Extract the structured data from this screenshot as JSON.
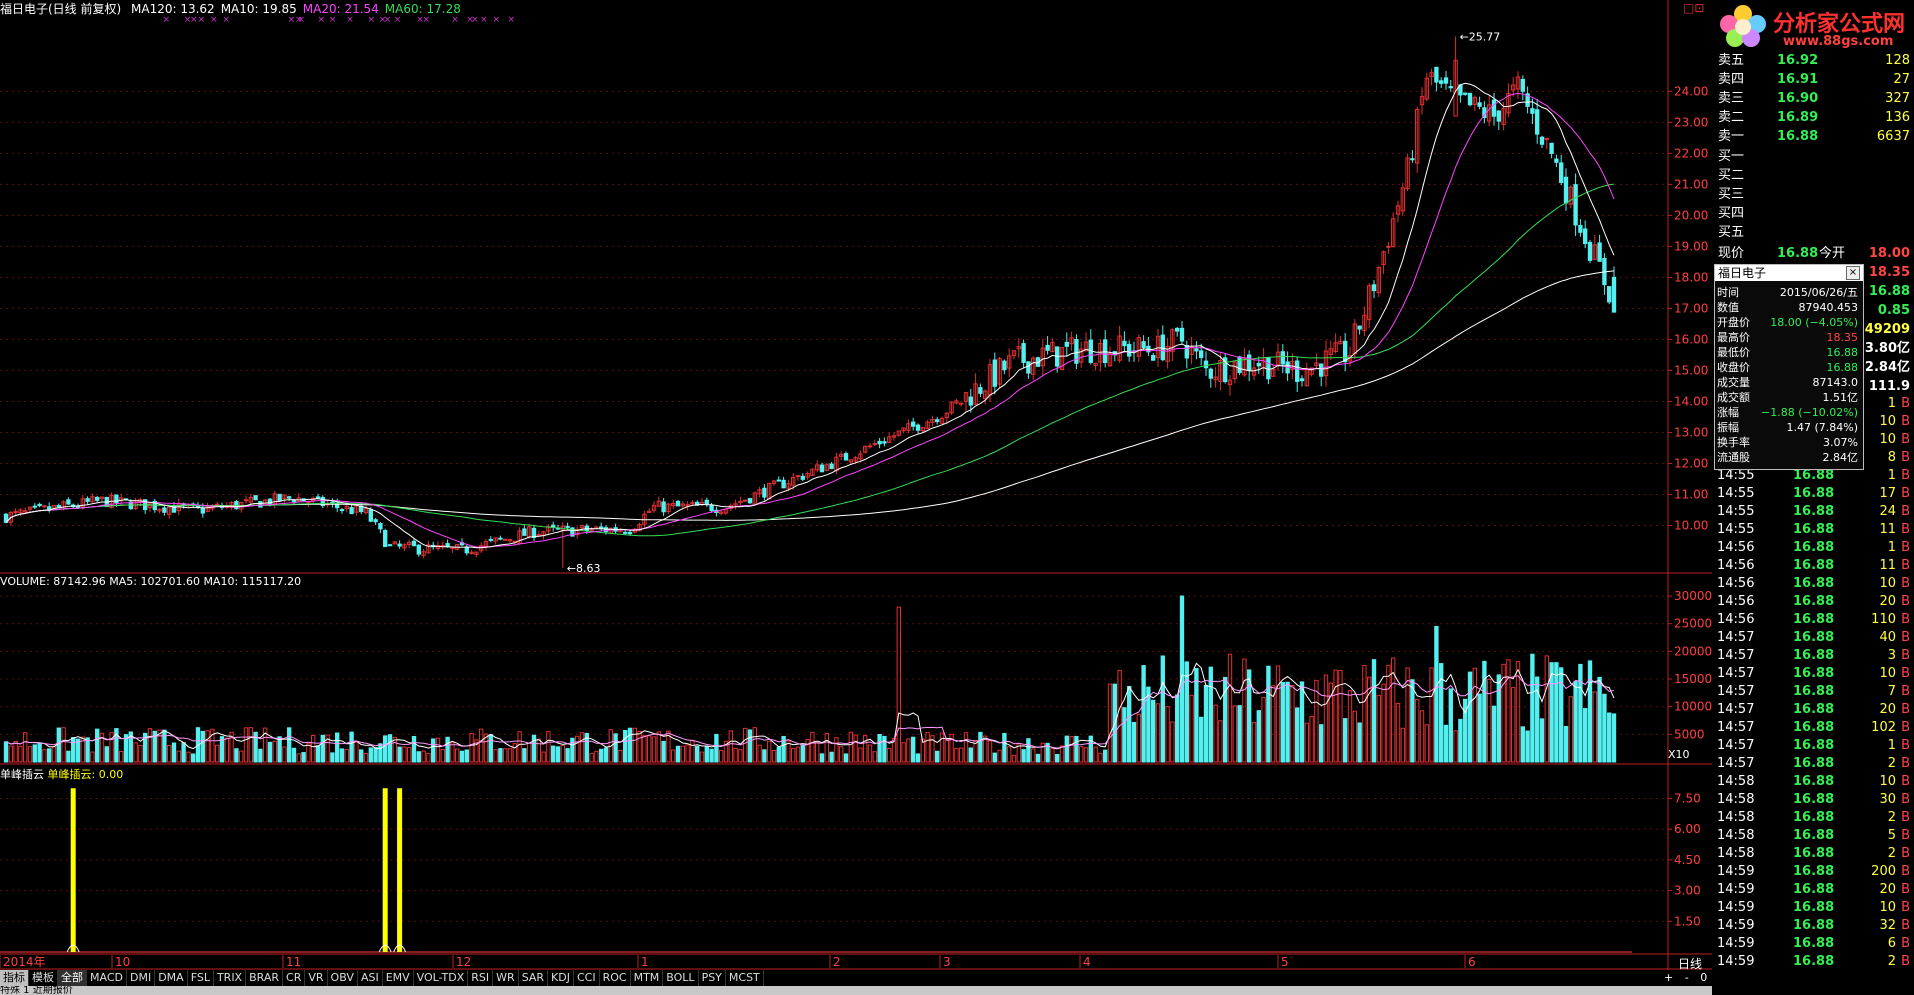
{
  "header": {
    "stock_title": "福日电子(日线 前复权)",
    "ma_items": [
      {
        "text": "MA120: 13.62",
        "color": "#ffffff"
      },
      {
        "text": "MA10: 19.85",
        "color": "#ffffff"
      },
      {
        "text": "MA20: 21.54",
        "color": "#ff44ff"
      },
      {
        "text": "MA60: 17.28",
        "color": "#33dd55"
      }
    ],
    "window_buttons": [
      "□",
      "⊡"
    ]
  },
  "price_chart": {
    "high_label": "25.77",
    "low_label": "8.63",
    "low_label_prefix": "←",
    "high_label_prefix": "←",
    "y_ticks": [
      "24.00",
      "23.00",
      "22.00",
      "21.00",
      "20.00",
      "19.00",
      "18.00",
      "17.00",
      "16.00",
      "15.00",
      "14.00",
      "13.00",
      "12.00",
      "11.00",
      "10.00"
    ],
    "ylim": [
      8.5,
      26.3
    ],
    "candles_count": 230,
    "closes_keypoints": [
      [
        0,
        10.3
      ],
      [
        20,
        10.8
      ],
      [
        40,
        10.5
      ],
      [
        60,
        10.9
      ],
      [
        75,
        10.4
      ],
      [
        80,
        9.3
      ],
      [
        95,
        9.2
      ],
      [
        110,
        9.8
      ],
      [
        130,
        9.9
      ],
      [
        135,
        10.6
      ],
      [
        150,
        10.6
      ],
      [
        175,
        12.2
      ],
      [
        195,
        13.6
      ],
      [
        210,
        15.3
      ],
      [
        225,
        15.7
      ],
      [
        240,
        15.7
      ],
      [
        245,
        16.0
      ],
      [
        250,
        15.0
      ],
      [
        260,
        15.3
      ],
      [
        270,
        15.0
      ],
      [
        280,
        15.6
      ],
      [
        285,
        17.8
      ],
      [
        292,
        21.4
      ],
      [
        296,
        24.5
      ],
      [
        302,
        23.7
      ],
      [
        310,
        23.2
      ],
      [
        315,
        24.1
      ],
      [
        322,
        22.0
      ],
      [
        330,
        19.0
      ],
      [
        335,
        17.2
      ]
    ],
    "signal_marks_colour": "#cc33cc",
    "colors": {
      "up": "#e03030",
      "down": "#54f0f0",
      "ma10": "#ffffff",
      "ma20": "#ff44ff",
      "ma60": "#33dd55",
      "ma120": "#ffffff"
    }
  },
  "volume_chart": {
    "header": "VOLUME: 87142.96  MA5: 102701.60  MA10: 115117.20",
    "y_ticks": [
      "30000",
      "25000",
      "20000",
      "15000",
      "10000",
      "5000"
    ],
    "unit": "X10",
    "ylim": [
      0,
      32000
    ]
  },
  "indicator_chart": {
    "header_name": "单峰插云",
    "header_value": "单峰插云: 0.00",
    "y_ticks": [
      "7.50",
      "6.00",
      "4.50",
      "3.00",
      "1.50"
    ],
    "ylim": [
      0,
      8.5
    ],
    "signal_colour": "#ffff00"
  },
  "x_axis": {
    "labels": [
      "2014年",
      "10",
      "11",
      "12",
      "1",
      "2",
      "3",
      "4",
      "5",
      "6"
    ],
    "period_label": "日线"
  },
  "tabs": [
    "指标",
    "模板",
    "全部",
    "MACD",
    "DMI",
    "DMA",
    "FSL",
    "TRIX",
    "BRAR",
    "CR",
    "VR",
    "OBV",
    "ASI",
    "EMV",
    "VOL-TDX",
    "RSI",
    "WR",
    "SAR",
    "KDJ",
    "CCI",
    "ROC",
    "MTM",
    "BOLL",
    "PSY",
    "MCST"
  ],
  "tab_controls": [
    "+",
    "-",
    "0"
  ],
  "footer_text": "特殊 1  近期报价",
  "logo": {
    "title": "分析家公式网",
    "url": "www.88gs.com"
  },
  "quote_panel": {
    "sell": [
      {
        "label": "卖五",
        "price": "16.92",
        "vol": "128"
      },
      {
        "label": "卖四",
        "price": "16.91",
        "vol": "27"
      },
      {
        "label": "卖三",
        "price": "16.90",
        "vol": "327"
      },
      {
        "label": "卖二",
        "price": "16.89",
        "vol": "136"
      },
      {
        "label": "卖一",
        "price": "16.88",
        "vol": "6637"
      }
    ],
    "buy": [
      {
        "label": "买一"
      },
      {
        "label": "买二"
      },
      {
        "label": "买三"
      },
      {
        "label": "买四"
      },
      {
        "label": "买五"
      }
    ],
    "current_label": "现价",
    "current_price": "16.88",
    "open_label": "今开",
    "right_values": [
      "18.00",
      "18.35",
      "16.88",
      "0.85",
      "49209",
      "3.80亿",
      "2.84亿",
      "111.9"
    ]
  },
  "popup": {
    "title": "福日电子",
    "close": "×",
    "rows": [
      {
        "label": "时间",
        "value": "2015/06/26/五"
      },
      {
        "label": "数值",
        "value": "87940.453"
      },
      {
        "label": "开盘价",
        "value": "18.00 (−4.05%)"
      },
      {
        "label": "最高价",
        "value": "18.35"
      },
      {
        "label": "最低价",
        "value": "16.88"
      },
      {
        "label": "收盘价",
        "value": "16.88"
      },
      {
        "label": "成交量",
        "value": "87143.0"
      },
      {
        "label": "成交额",
        "value": "1.51亿"
      },
      {
        "label": "涨幅",
        "value": "−1.88 (−10.02%)"
      },
      {
        "label": "振幅",
        "value": "1.47 (7.84%)"
      },
      {
        "label": "换手率",
        "value": "3.07%"
      },
      {
        "label": "流通股",
        "value": "2.84亿"
      }
    ]
  },
  "ticks": [
    {
      "t": "",
      "p": "",
      "v": "1",
      "d": "B"
    },
    {
      "t": "",
      "p": "",
      "v": "10",
      "d": "B"
    },
    {
      "t": "",
      "p": "",
      "v": "10",
      "d": "B"
    },
    {
      "t": "",
      "p": "",
      "v": "8",
      "d": "B"
    },
    {
      "t": "14:55",
      "p": "16.88",
      "v": "1",
      "d": "B"
    },
    {
      "t": "14:55",
      "p": "16.88",
      "v": "17",
      "d": "B"
    },
    {
      "t": "14:55",
      "p": "16.88",
      "v": "24",
      "d": "B"
    },
    {
      "t": "14:55",
      "p": "16.88",
      "v": "11",
      "d": "B"
    },
    {
      "t": "14:56",
      "p": "16.88",
      "v": "1",
      "d": "B"
    },
    {
      "t": "14:56",
      "p": "16.88",
      "v": "11",
      "d": "B"
    },
    {
      "t": "14:56",
      "p": "16.88",
      "v": "10",
      "d": "B"
    },
    {
      "t": "14:56",
      "p": "16.88",
      "v": "20",
      "d": "B"
    },
    {
      "t": "14:56",
      "p": "16.88",
      "v": "110",
      "d": "B"
    },
    {
      "t": "14:57",
      "p": "16.88",
      "v": "40",
      "d": "B"
    },
    {
      "t": "14:57",
      "p": "16.88",
      "v": "3",
      "d": "B"
    },
    {
      "t": "14:57",
      "p": "16.88",
      "v": "10",
      "d": "B"
    },
    {
      "t": "14:57",
      "p": "16.88",
      "v": "7",
      "d": "B"
    },
    {
      "t": "14:57",
      "p": "16.88",
      "v": "20",
      "d": "B"
    },
    {
      "t": "14:57",
      "p": "16.88",
      "v": "102",
      "d": "B"
    },
    {
      "t": "14:57",
      "p": "16.88",
      "v": "1",
      "d": "B"
    },
    {
      "t": "14:57",
      "p": "16.88",
      "v": "2",
      "d": "B"
    },
    {
      "t": "14:58",
      "p": "16.88",
      "v": "10",
      "d": "B"
    },
    {
      "t": "14:58",
      "p": "16.88",
      "v": "30",
      "d": "B"
    },
    {
      "t": "14:58",
      "p": "16.88",
      "v": "2",
      "d": "B"
    },
    {
      "t": "14:58",
      "p": "16.88",
      "v": "5",
      "d": "B"
    },
    {
      "t": "14:58",
      "p": "16.88",
      "v": "2",
      "d": "B"
    },
    {
      "t": "14:59",
      "p": "16.88",
      "v": "200",
      "d": "B"
    },
    {
      "t": "14:59",
      "p": "16.88",
      "v": "20",
      "d": "B"
    },
    {
      "t": "14:59",
      "p": "16.88",
      "v": "10",
      "d": "B"
    },
    {
      "t": "14:59",
      "p": "16.88",
      "v": "32",
      "d": "B"
    },
    {
      "t": "14:59",
      "p": "16.88",
      "v": "6",
      "d": "B"
    },
    {
      "t": "14:59",
      "p": "16.88",
      "v": "2",
      "d": "B"
    }
  ]
}
